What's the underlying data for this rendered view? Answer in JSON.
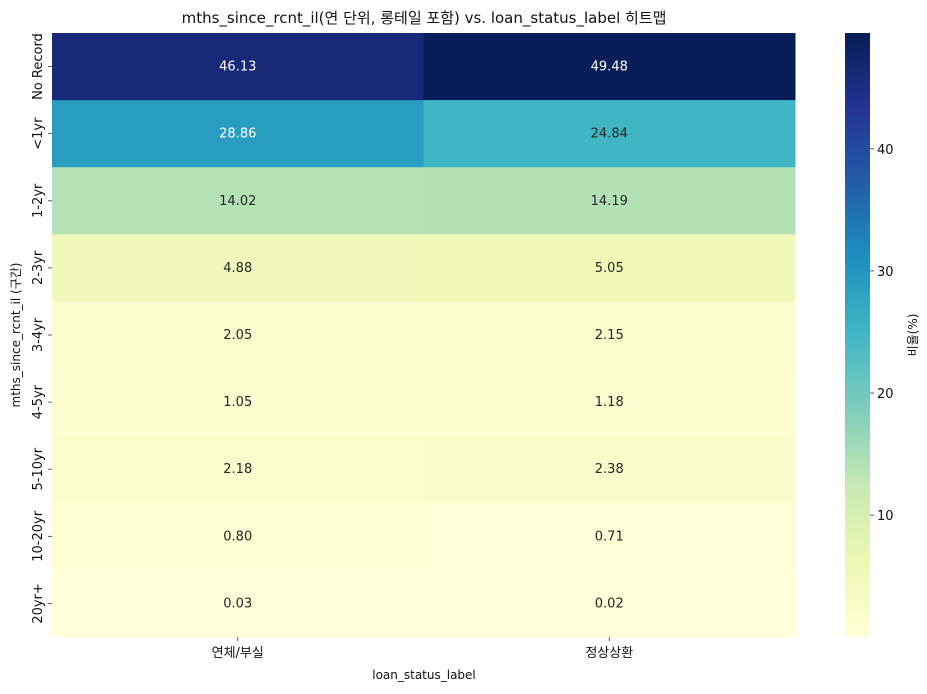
{
  "chart_data": {
    "type": "heatmap",
    "title": "mths_since_rcnt_il(연 단위, 롱테일 포함) vs. loan_status_label 히트맵",
    "xlabel": "loan_status_label",
    "ylabel": "mths_since_rcnt_il (구간)",
    "columns": [
      "연체/부실",
      "정상상환"
    ],
    "rows": [
      "No Record",
      "<1yr",
      "1-2yr",
      "2-3yr",
      "3-4yr",
      "4-5yr",
      "5-10yr",
      "10-20yr",
      "20yr+"
    ],
    "values": [
      [
        46.13,
        49.48
      ],
      [
        28.86,
        24.84
      ],
      [
        14.02,
        14.19
      ],
      [
        4.88,
        5.05
      ],
      [
        2.05,
        2.15
      ],
      [
        1.05,
        1.18
      ],
      [
        2.18,
        2.38
      ],
      [
        0.8,
        0.71
      ],
      [
        0.03,
        0.02
      ]
    ],
    "value_format_decimals": 2,
    "colormap": "YlGnBu",
    "colorbar": {
      "label": "비율(%)",
      "range": [
        0.02,
        49.48
      ],
      "ticks": [
        10,
        20,
        30,
        40
      ]
    },
    "grid": false,
    "legend": "colorbar right"
  }
}
